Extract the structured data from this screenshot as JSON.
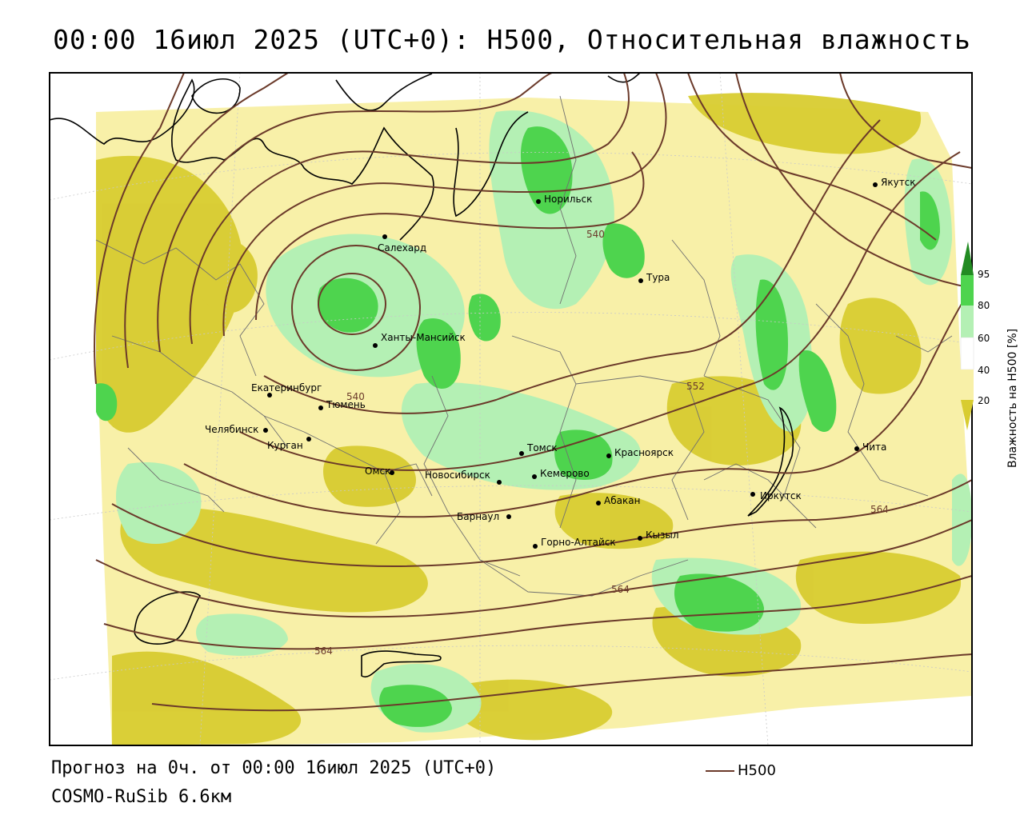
{
  "title": "00:00 16июл 2025 (UTC+0): H500, Относительная влажность",
  "footer": {
    "line1": "Прогноз на 0ч. от 00:00 16июл 2025 (UTC+0)",
    "line2": "COSMO-RuSib 6.6км"
  },
  "legend": {
    "label": "H500",
    "line_color": "#6b3a2a"
  },
  "colorbar": {
    "title": "Влажность на H500 [%]",
    "ticks": [
      "95",
      "80",
      "60",
      "40",
      "20"
    ],
    "colors": {
      "c95": "#228b22",
      "c80": "#4ed44e",
      "c60": "#b4f0b4",
      "c40": "#ffffff",
      "c20": "#f8f0a8",
      "c0": "#d8cc30"
    }
  },
  "cities": [
    {
      "name": "Норильск"
    },
    {
      "name": "Якутск"
    },
    {
      "name": "Салехард"
    },
    {
      "name": "Тура"
    },
    {
      "name": "Ханты-Мансийск"
    },
    {
      "name": "Екатеринбург"
    },
    {
      "name": "Тюмень"
    },
    {
      "name": "Челябинск"
    },
    {
      "name": "Курган"
    },
    {
      "name": "Омск"
    },
    {
      "name": "Новосибирск"
    },
    {
      "name": "Томск"
    },
    {
      "name": "Кемерово"
    },
    {
      "name": "Красноярск"
    },
    {
      "name": "Барнаул"
    },
    {
      "name": "Абакан"
    },
    {
      "name": "Горно-Алтайск"
    },
    {
      "name": "Кызыл"
    },
    {
      "name": "Иркутск"
    },
    {
      "name": "Чита"
    }
  ],
  "contour_labels": [
    "540",
    "540",
    "552",
    "564",
    "564",
    "564"
  ]
}
